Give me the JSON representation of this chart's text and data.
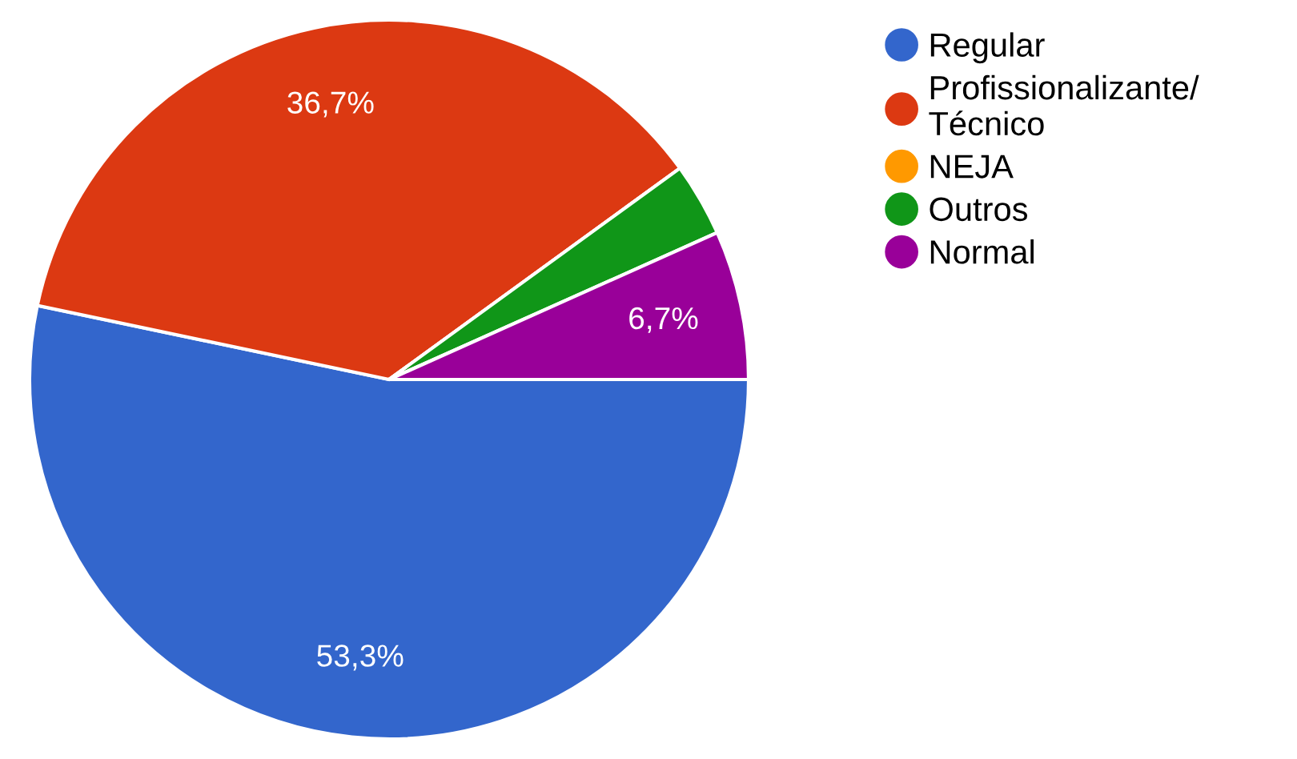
{
  "chart_data": {
    "type": "pie",
    "categories": [
      "Regular",
      "Profissionalizante/\nTécnico",
      "NEJA",
      "Outros",
      "Normal"
    ],
    "values": [
      53.3,
      36.7,
      0,
      3.3,
      6.7
    ],
    "colors": [
      "#3366cc",
      "#dc3912",
      "#ff9900",
      "#109618",
      "#990099"
    ],
    "value_labels": [
      "53,3%",
      "36,7%",
      null,
      null,
      "6,7%"
    ],
    "legend": "top right"
  }
}
